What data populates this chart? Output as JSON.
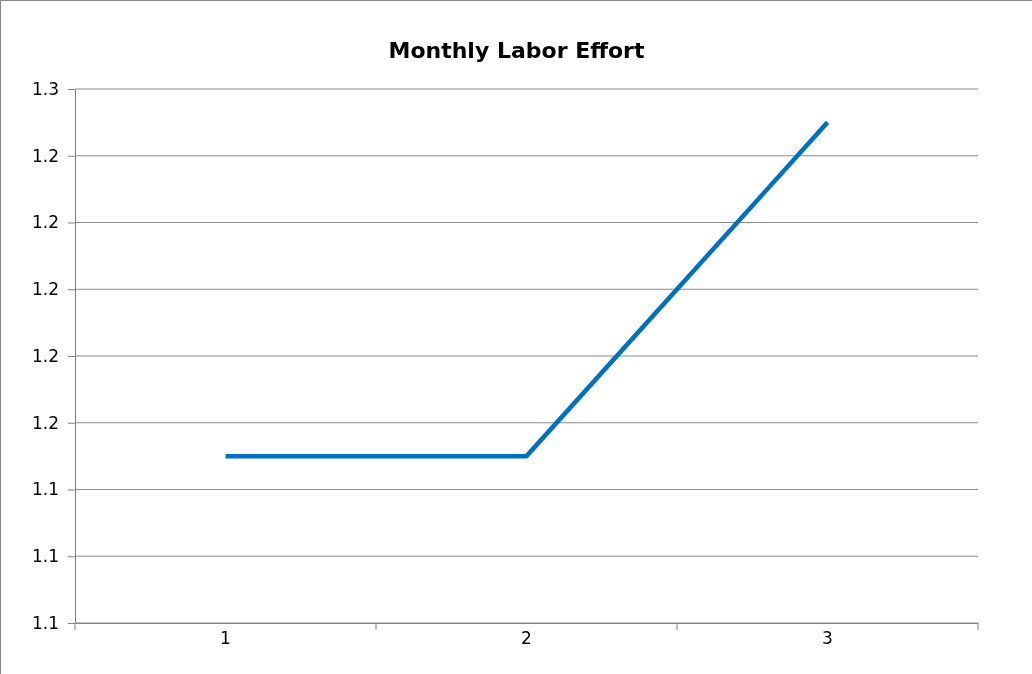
{
  "chart_data": {
    "type": "line",
    "title": "Monthly Labor Effort",
    "categories": [
      "1",
      "2",
      "3"
    ],
    "series": [
      {
        "color": "#0070c0",
        "values": [
          1.15,
          1.15,
          1.25
        ]
      }
    ],
    "ylim": [
      1.1,
      1.26
    ],
    "yticks": [
      {
        "value": 1.1,
        "label": "1.1"
      },
      {
        "value": 1.12,
        "label": "1.1"
      },
      {
        "value": 1.14,
        "label": "1.1"
      },
      {
        "value": 1.16,
        "label": "1.2"
      },
      {
        "value": 1.18,
        "label": "1.2"
      },
      {
        "value": 1.2,
        "label": "1.2"
      },
      {
        "value": 1.22,
        "label": "1.2"
      },
      {
        "value": 1.24,
        "label": "1.2"
      },
      {
        "value": 1.26,
        "label": "1.3"
      }
    ],
    "grid": "y",
    "marker": "none",
    "line_style": "solid"
  }
}
